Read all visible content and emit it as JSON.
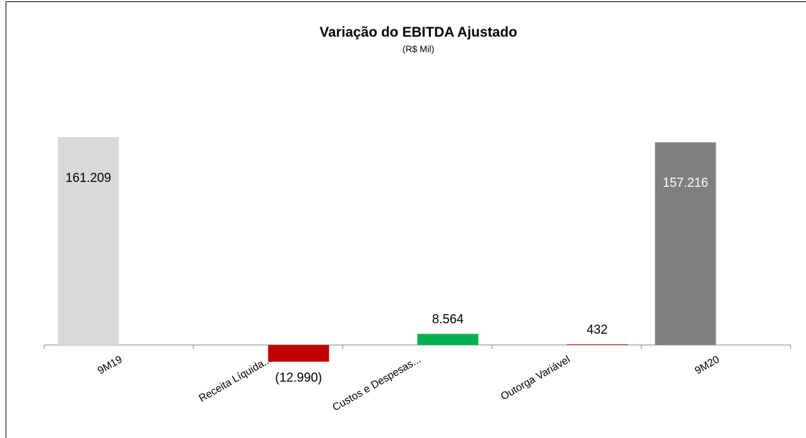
{
  "chart_data": {
    "type": "waterfall",
    "title": "Variação do EBITDA Ajustado",
    "subtitle": "(R$ Mil)",
    "categories": [
      "9M19",
      "Receita Líquida...",
      "Custos e Despesas...",
      "Outorga Variável",
      "9M20"
    ],
    "values": [
      161209,
      -12990,
      8564,
      432,
      157216
    ],
    "value_labels": [
      "161.209",
      "(12.990)",
      "8.564",
      "432",
      "157.216"
    ],
    "colors": [
      "#d9d9d9",
      "#c00000",
      "#00b050",
      "#c00000",
      "#808080"
    ],
    "label_colors": [
      "#000000",
      "#000000",
      "#000000",
      "#000000",
      "#ffffff"
    ]
  }
}
